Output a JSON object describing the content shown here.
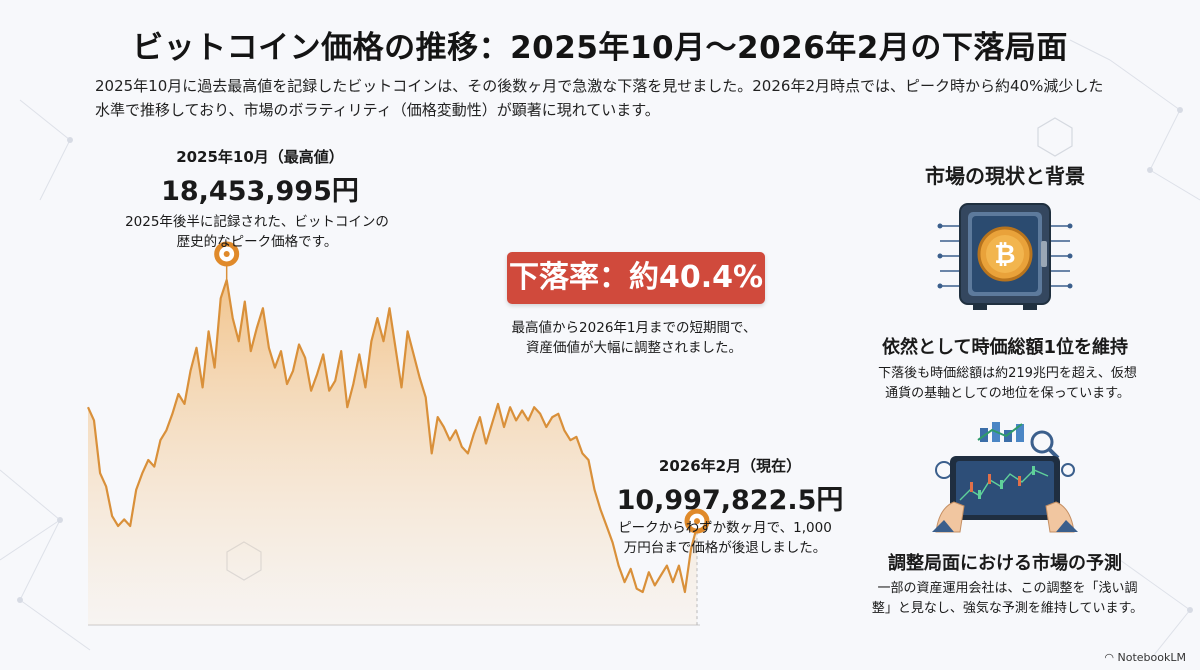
{
  "title": "ビットコイン価格の推移：2025年10月〜2026年2月の下落局面",
  "lead": "2025年10月に過去最高値を記録したビットコインは、その後数ヶ月で急激な下落を見せました。2026年2月時点では、ピーク時から約40%減少した水準で推移しており、市場のボラティリティ（価格変動性）が顕著に現れています。",
  "peak": {
    "date": "2025年10月（最高値）",
    "value": "18,453,995円",
    "note_line1": "2025年後半に記録された、ビットコインの",
    "note_line2": "歴史的なピーク価格です。"
  },
  "drop": {
    "badge": "下落率：約40.4%",
    "note_line1": "最高値から2026年1月までの短期間で、",
    "note_line2": "資産価値が大幅に調整されました。"
  },
  "current": {
    "date": "2026年2月（現在）",
    "value": "10,997,822.5円",
    "note_line1": "ピークからわずか数ヶ月で、1,000",
    "note_line2": "万円台まで価格が後退しました。"
  },
  "side": {
    "title": "市場の現状と背景",
    "section1_heading": "依然として時価総額1位を維持",
    "section1_line1": "下落後も時価総額は約219兆円を超え、仮想",
    "section1_line2": "通貨の基軸としての地位を保っています。",
    "section2_heading": "調整局面における市場の予測",
    "section2_line1": "一部の資産運用会社は、この調整を「浅い調",
    "section2_line2": "整」と見なし、強気な予測を維持しています。",
    "icon1": "bitcoin-vault-icon",
    "icon2": "trading-tablet-icon"
  },
  "footer": {
    "brand": "NotebookLM"
  },
  "colors": {
    "line": "#d9903a",
    "fill": "#f2c690",
    "badge": "#d04a3c",
    "marker": "#e08a2a"
  },
  "chart_data": {
    "type": "area",
    "title": "",
    "xlabel": "",
    "ylabel": "",
    "grid": false,
    "legend": "none",
    "x_range": [
      "2025年後半",
      "2026年2月"
    ],
    "ylim": [
      8000000,
      20000000
    ],
    "series": [
      {
        "values": [
          14600000,
          14200000,
          12600000,
          12200000,
          11300000,
          11000000,
          11200000,
          11000000,
          12100000,
          12600000,
          13000000,
          12800000,
          13600000,
          13900000,
          14400000,
          15000000,
          14700000,
          15700000,
          16400000,
          15200000,
          16900000,
          15800000,
          17900000,
          18453995,
          17300000,
          16600000,
          17800000,
          16300000,
          17000000,
          17600000,
          16400000,
          15800000,
          16300000,
          15300000,
          15700000,
          16500000,
          16100000,
          15100000,
          15600000,
          16200000,
          15100000,
          15400000,
          16300000,
          14600000,
          15300000,
          16200000,
          15200000,
          16600000,
          17300000,
          16600000,
          17600000,
          16400000,
          15200000,
          16900000,
          16200000,
          15500000,
          14900000,
          13200000,
          14300000,
          14000000,
          13600000,
          13900000,
          13400000,
          13200000,
          13800000,
          14300000,
          13500000,
          14100000,
          14700000,
          14000000,
          14600000,
          14200000,
          14500000,
          14200000,
          14600000,
          14400000,
          14000000,
          14300000,
          14400000,
          13900000,
          13600000,
          13700000,
          13200000,
          13000000,
          12100000,
          11500000,
          11000000,
          10500000,
          9800000,
          9300000,
          9700000,
          9100000,
          9000000,
          9600000,
          9200000,
          9500000,
          9800000,
          9300000,
          9800000,
          9000000,
          10300000,
          10997822.5
        ]
      }
    ],
    "annotations": [
      {
        "label": "2025年10月（最高値）",
        "value": 18453995
      },
      {
        "label": "2026年2月（現在）",
        "value": 10997822.5
      }
    ],
    "drop_rate": "約40.4%"
  }
}
